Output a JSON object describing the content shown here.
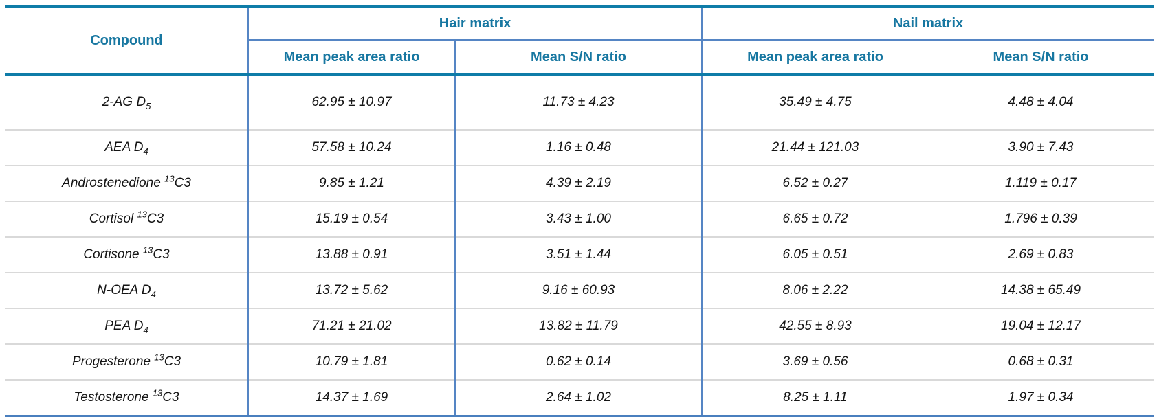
{
  "table": {
    "header": {
      "compound_label": "Compound",
      "groups": [
        {
          "label": "Hair matrix"
        },
        {
          "label": "Nail matrix"
        }
      ],
      "subheaders": [
        "Mean peak area ratio",
        "Mean S/N ratio",
        "Mean peak area ratio",
        "Mean S/N ratio"
      ]
    },
    "rows": [
      {
        "compound": {
          "prefix": "2-AG D",
          "sup": "",
          "suffix": "",
          "sub": "5"
        },
        "values": [
          "62.95 ± 10.97",
          "11.73 ± 4.23",
          "35.49 ± 4.75",
          "4.48 ± 4.04"
        ]
      },
      {
        "compound": {
          "prefix": "AEA D",
          "sup": "",
          "suffix": "",
          "sub": "4"
        },
        "values": [
          "57.58 ± 10.24",
          "1.16 ± 0.48",
          "21.44 ± 121.03",
          "3.90 ± 7.43"
        ]
      },
      {
        "compound": {
          "prefix": "Androstenedione ",
          "sup": "13",
          "suffix": "C3",
          "sub": ""
        },
        "values": [
          "9.85 ± 1.21",
          "4.39 ± 2.19",
          "6.52 ± 0.27",
          "1.119 ± 0.17"
        ]
      },
      {
        "compound": {
          "prefix": "Cortisol ",
          "sup": "13",
          "suffix": "C3",
          "sub": ""
        },
        "values": [
          "15.19 ± 0.54",
          "3.43 ± 1.00",
          "6.65 ± 0.72",
          "1.796 ± 0.39"
        ]
      },
      {
        "compound": {
          "prefix": "Cortisone ",
          "sup": "13",
          "suffix": "C3",
          "sub": ""
        },
        "values": [
          "13.88 ± 0.91",
          "3.51 ± 1.44",
          "6.05 ± 0.51",
          "2.69 ± 0.83"
        ]
      },
      {
        "compound": {
          "prefix": "N-OEA D",
          "sup": "",
          "suffix": "",
          "sub": "4"
        },
        "values": [
          "13.72 ± 5.62",
          "9.16 ± 60.93",
          "8.06 ± 2.22",
          "14.38 ± 65.49"
        ]
      },
      {
        "compound": {
          "prefix": "PEA D",
          "sup": "",
          "suffix": "",
          "sub": "4"
        },
        "values": [
          "71.21 ± 21.02",
          "13.82 ± 11.79",
          "42.55 ± 8.93",
          "19.04 ± 12.17"
        ]
      },
      {
        "compound": {
          "prefix": "Progesterone ",
          "sup": "13",
          "suffix": "C3",
          "sub": ""
        },
        "values": [
          "10.79 ± 1.81",
          "0.62 ± 0.14",
          "3.69 ± 0.56",
          "0.68 ± 0.31"
        ]
      },
      {
        "compound": {
          "prefix": "Testosterone ",
          "sup": "13",
          "suffix": "C3",
          "sub": ""
        },
        "values": [
          "14.37 ± 1.69",
          "2.64 ± 1.02",
          "8.25 ± 1.11",
          "1.97 ± 0.34"
        ]
      }
    ]
  },
  "colors": {
    "header_text": "#1777a1",
    "teal_rule": "#0e7ca8",
    "blue_rule": "#5585c4",
    "bottom_rule": "#4a7fbe",
    "row_separator": "#d9d9d9",
    "body_text": "#141414"
  }
}
